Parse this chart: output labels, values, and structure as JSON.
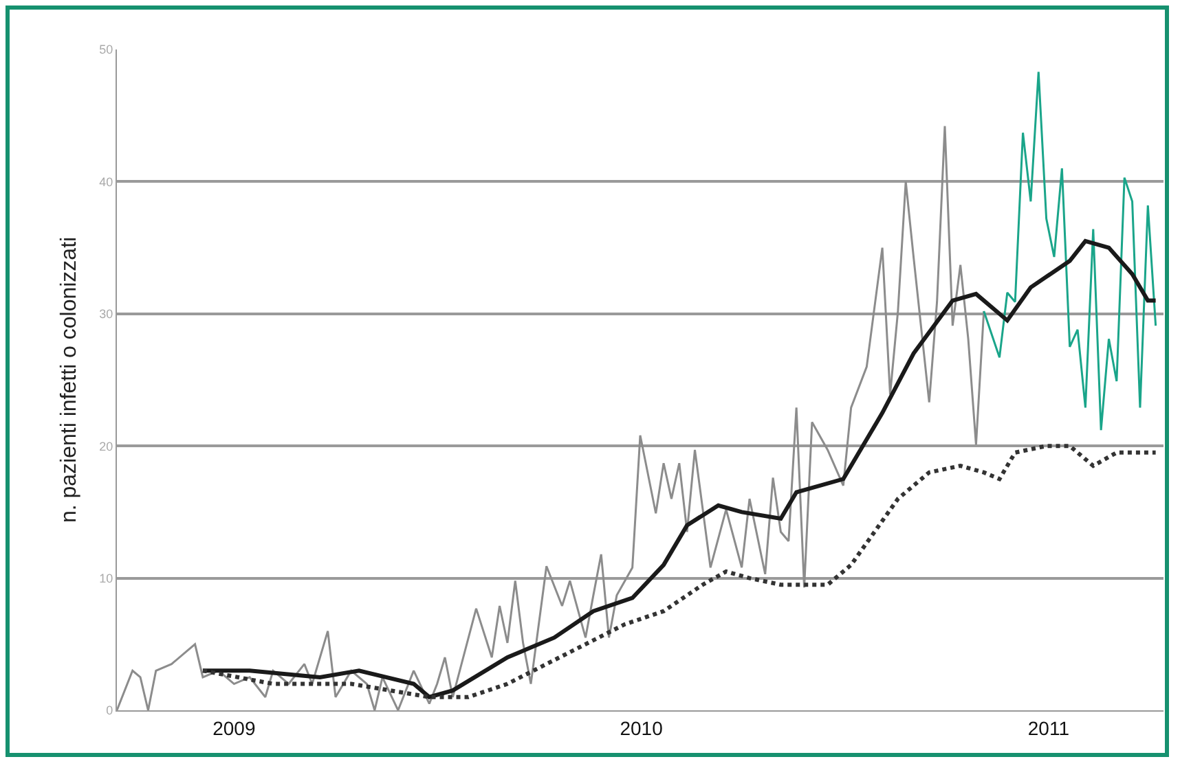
{
  "chart_data": {
    "type": "line",
    "ylabel": "n. pazienti infetti o colonizzati",
    "xlim": [
      "2008-09-18",
      "2011-04-14"
    ],
    "xticks": [
      "2009",
      "2010",
      "2011"
    ],
    "ylim": [
      0,
      50
    ],
    "yticks": [
      0,
      10,
      20,
      30,
      40,
      50
    ],
    "grid": "y",
    "marker": "none",
    "series": [
      {
        "color": "#8c8c8c",
        "line_style": "solid",
        "x": [
          "2008-09-18",
          "2008-10-02",
          "2008-10-09",
          "2008-10-16",
          "2008-10-23",
          "2008-11-06",
          "2008-11-20",
          "2008-11-27",
          "2008-12-04",
          "2008-12-18",
          "2009-01-01",
          "2009-01-15",
          "2009-01-29",
          "2009-02-05",
          "2009-02-19",
          "2009-03-05",
          "2009-03-12",
          "2009-03-26",
          "2009-04-02",
          "2009-04-16",
          "2009-04-30",
          "2009-05-07",
          "2009-05-14",
          "2009-05-28",
          "2009-06-11",
          "2009-06-25",
          "2009-07-02",
          "2009-07-09",
          "2009-07-16",
          "2009-08-06",
          "2009-08-20",
          "2009-08-27",
          "2009-09-03",
          "2009-09-10",
          "2009-09-17",
          "2009-09-24",
          "2009-10-08",
          "2009-10-22",
          "2009-10-29",
          "2009-11-12",
          "2009-11-19",
          "2009-11-26",
          "2009-12-03",
          "2009-12-10",
          "2009-12-24",
          "2009-12-31",
          "2010-01-14",
          "2010-01-21",
          "2010-01-28",
          "2010-02-04",
          "2010-02-11",
          "2010-02-18",
          "2010-03-04",
          "2010-03-18",
          "2010-04-01",
          "2010-04-08",
          "2010-04-22",
          "2010-04-29",
          "2010-05-06",
          "2010-05-13",
          "2010-05-20",
          "2010-05-27",
          "2010-06-03",
          "2010-06-17",
          "2010-07-01",
          "2010-07-08",
          "2010-07-22",
          "2010-08-05",
          "2010-08-12",
          "2010-08-19",
          "2010-08-26",
          "2010-09-02",
          "2010-09-16",
          "2010-09-23",
          "2010-09-30",
          "2010-10-07",
          "2010-10-14",
          "2010-10-21",
          "2010-10-28",
          "2010-11-04"
        ],
        "values": [
          0,
          3,
          2.5,
          0,
          3,
          3.5,
          4.5,
          5,
          2.5,
          3,
          2,
          2.5,
          1,
          3,
          2,
          3.5,
          2,
          6,
          1,
          3,
          2,
          0,
          2.5,
          0,
          3,
          0.5,
          2,
          4,
          1,
          7.7,
          4,
          7.9,
          5.1,
          9.8,
          5.1,
          2,
          10.9,
          7.9,
          9.8,
          5.5,
          8.7,
          11.8,
          5.5,
          8.7,
          10.8,
          20.8,
          14.9,
          18.7,
          16,
          18.7,
          13.5,
          19.7,
          10.8,
          15.2,
          10.8,
          16,
          10.3,
          17.6,
          13.5,
          12.8,
          22.9,
          9.3,
          21.8,
          19.7,
          17,
          22.9,
          26,
          35,
          23.9,
          30.2,
          40,
          34.3,
          23.3,
          30.9,
          44.2,
          29.1,
          33.7,
          28.1,
          20.1,
          30.2
        ]
      },
      {
        "color": "#1aa58a",
        "line_style": "solid",
        "x": [
          "2010-11-04",
          "2010-11-18",
          "2010-11-25",
          "2010-12-02",
          "2010-12-09",
          "2010-12-16",
          "2010-12-23",
          "2010-12-30",
          "2011-01-06",
          "2011-01-13",
          "2011-01-20",
          "2011-01-27",
          "2011-02-03",
          "2011-02-10",
          "2011-02-17",
          "2011-02-24",
          "2011-03-03",
          "2011-03-10",
          "2011-03-17",
          "2011-03-24",
          "2011-03-31",
          "2011-04-07"
        ],
        "values": [
          30.2,
          26.7,
          31.6,
          30.9,
          43.7,
          38.5,
          48.3,
          37.2,
          34.3,
          41,
          27.5,
          28.8,
          22.9,
          36.4,
          21.2,
          28.1,
          24.9,
          40.3,
          38.5,
          22.9,
          38.2,
          29.1
        ]
      },
      {
        "color": "#1a1a1a",
        "line_style": "solid",
        "x": [
          "2008-12-04",
          "2009-01-15",
          "2009-03-19",
          "2009-04-23",
          "2009-06-11",
          "2009-06-25",
          "2009-07-16",
          "2009-09-03",
          "2009-10-15",
          "2009-11-19",
          "2009-12-24",
          "2010-01-21",
          "2010-02-11",
          "2010-03-11",
          "2010-04-01",
          "2010-05-06",
          "2010-05-20",
          "2010-07-01",
          "2010-08-05",
          "2010-09-02",
          "2010-10-07",
          "2010-10-28",
          "2010-11-25",
          "2010-12-16",
          "2011-01-20",
          "2011-02-03",
          "2011-02-24",
          "2011-03-17",
          "2011-03-31",
          "2011-04-07"
        ],
        "values": [
          3,
          3,
          2.5,
          3,
          2,
          1,
          1.5,
          4,
          5.5,
          7.5,
          8.5,
          11,
          14,
          15.5,
          15,
          14.5,
          16.5,
          17.5,
          22.5,
          27,
          31,
          31.5,
          29.5,
          32,
          34,
          35.5,
          35,
          33,
          31,
          31
        ]
      },
      {
        "color": "#333333",
        "line_style": "dotted",
        "x": [
          "2008-12-04",
          "2009-02-05",
          "2009-04-16",
          "2009-06-25",
          "2009-07-30",
          "2009-09-03",
          "2009-10-08",
          "2009-11-12",
          "2009-12-17",
          "2010-01-21",
          "2010-02-25",
          "2010-03-18",
          "2010-04-08",
          "2010-05-06",
          "2010-05-27",
          "2010-06-17",
          "2010-07-08",
          "2010-07-29",
          "2010-08-19",
          "2010-09-16",
          "2010-10-14",
          "2010-11-04",
          "2010-11-18",
          "2010-12-02",
          "2010-12-30",
          "2011-01-20",
          "2011-02-10",
          "2011-03-03",
          "2011-03-24",
          "2011-04-07"
        ],
        "values": [
          3,
          2,
          2,
          1,
          1,
          2,
          3.5,
          5,
          6.5,
          7.5,
          9.5,
          10.5,
          10,
          9.5,
          9.5,
          9.5,
          11,
          13.5,
          16,
          18,
          18.5,
          18,
          17.5,
          19.5,
          20,
          20,
          18.5,
          19.5,
          19.5,
          19.5
        ]
      }
    ]
  }
}
